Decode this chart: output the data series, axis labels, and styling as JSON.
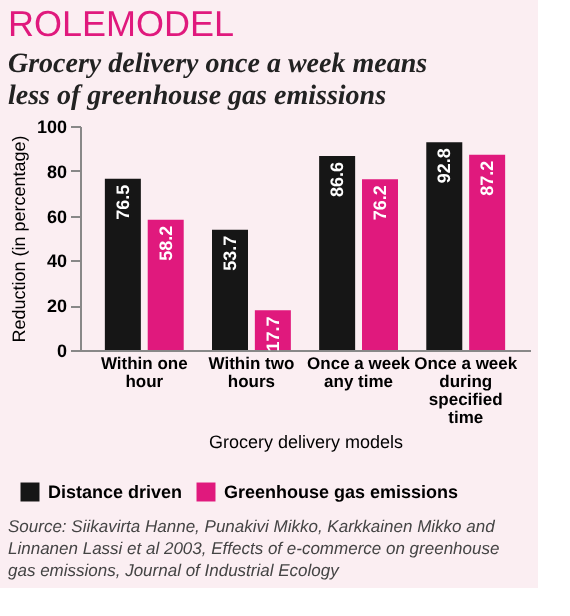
{
  "chart_data": {
    "type": "bar",
    "title": "ROLEMODEL",
    "subtitle": "Grocery delivery once a week means less of greenhouse gas emissions",
    "xlabel": "Grocery delivery models",
    "ylabel": "Reduction (in percentage)",
    "categories": [
      "Within one hour",
      "Within two hours",
      "Once a week any time",
      "Once a week during specified time"
    ],
    "series": [
      {
        "name": "Distance driven",
        "color": "#161616",
        "values": [
          76.5,
          53.7,
          86.6,
          92.8
        ]
      },
      {
        "name": "Greenhouse gas emissions",
        "color": "#e0197d",
        "values": [
          58.2,
          17.7,
          76.2,
          87.2
        ]
      }
    ],
    "ylim": [
      0,
      100
    ],
    "yticks": [
      0,
      20,
      40,
      60,
      80,
      100
    ],
    "grid": false,
    "legend": "bottom",
    "data_labels": true,
    "annotations": [
      "Source: Siikavirta Hanne, Punakivi Mikko, Karkkainen Mikko and Linnanen Lassi et al 2003, Effects of e-commerce on greenhouse gas  emissions, Journal of Industrial Ecology"
    ]
  }
}
